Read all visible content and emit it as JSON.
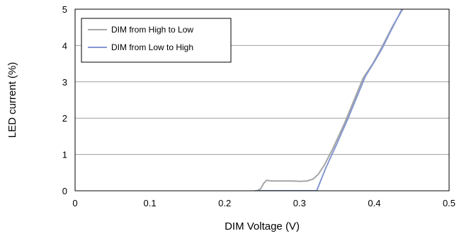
{
  "chart_data": {
    "type": "line",
    "xlabel": "DIM Voltage (V)",
    "ylabel": "LED current (%)",
    "xlim": [
      0,
      0.5
    ],
    "ylim": [
      0,
      5
    ],
    "x_ticks": [
      "0",
      "0.1",
      "0.2",
      "0.3",
      "0.4",
      "0.5"
    ],
    "y_ticks": [
      "0",
      "1",
      "2",
      "3",
      "4",
      "5"
    ],
    "grid": "horizontal",
    "legend_position": "top-left",
    "series": [
      {
        "name": "DIM from High to Low",
        "color": "#a6a6a6",
        "points": [
          [
            0.243,
            0.0
          ],
          [
            0.248,
            0.05
          ],
          [
            0.252,
            0.2
          ],
          [
            0.256,
            0.29
          ],
          [
            0.262,
            0.27
          ],
          [
            0.275,
            0.27
          ],
          [
            0.29,
            0.27
          ],
          [
            0.3,
            0.26
          ],
          [
            0.31,
            0.27
          ],
          [
            0.318,
            0.32
          ],
          [
            0.325,
            0.45
          ],
          [
            0.333,
            0.7
          ],
          [
            0.345,
            1.18
          ],
          [
            0.36,
            1.85
          ],
          [
            0.372,
            2.45
          ],
          [
            0.385,
            3.1
          ],
          [
            0.398,
            3.5
          ],
          [
            0.41,
            3.95
          ],
          [
            0.425,
            4.55
          ],
          [
            0.438,
            5.0
          ]
        ]
      },
      {
        "name": "DIM from Low to High",
        "color": "#8497d0",
        "points": [
          [
            0.24,
            0.0
          ],
          [
            0.323,
            0.0
          ],
          [
            0.335,
            0.62
          ],
          [
            0.35,
            1.3
          ],
          [
            0.365,
            2.0
          ],
          [
            0.378,
            2.65
          ],
          [
            0.388,
            3.15
          ],
          [
            0.4,
            3.55
          ],
          [
            0.41,
            3.9
          ],
          [
            0.422,
            4.4
          ],
          [
            0.437,
            5.0
          ]
        ]
      }
    ]
  }
}
